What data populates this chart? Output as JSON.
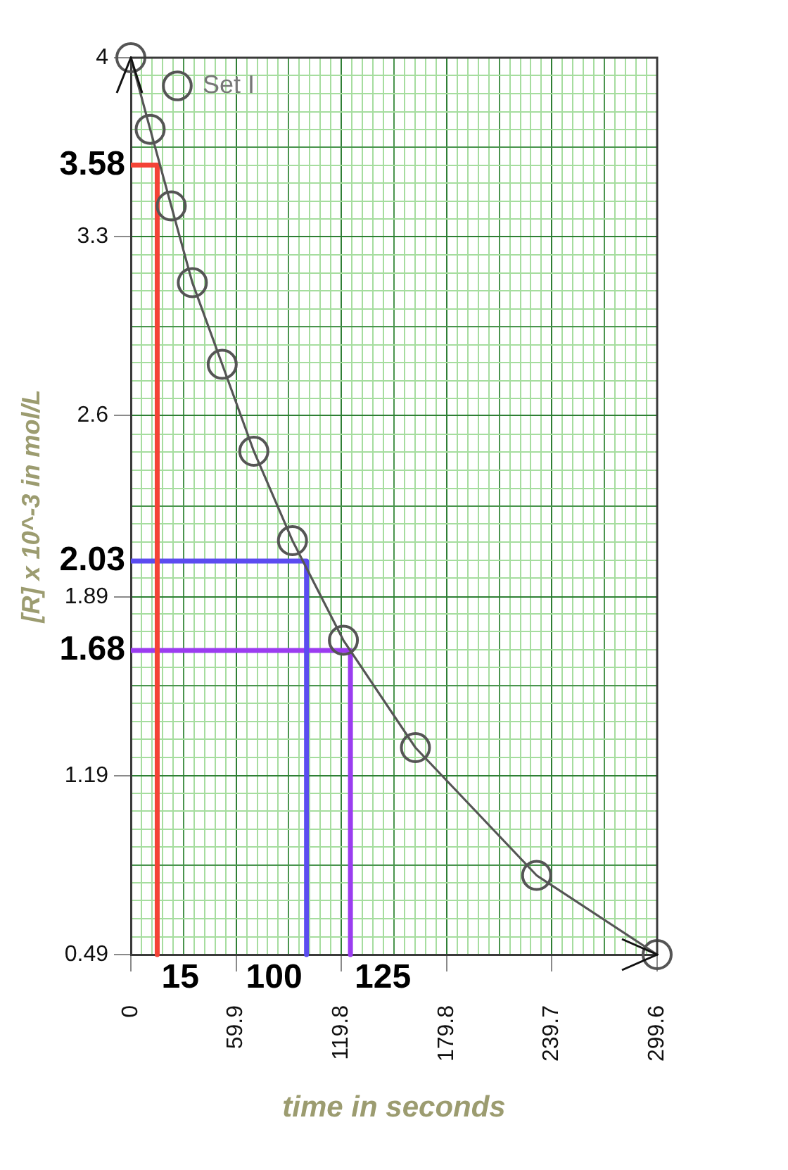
{
  "chart_data": {
    "type": "line",
    "xlabel": "time in seconds",
    "ylabel": "[R] x 10^-3 in mol/L",
    "x": [
      0,
      11,
      23,
      35,
      52,
      70,
      92,
      121,
      162,
      231,
      299.6
    ],
    "series": [
      {
        "name": "Set I",
        "color": "#555555",
        "values": [
          4,
          3.72,
          3.42,
          3.12,
          2.8,
          2.46,
          2.11,
          1.72,
          1.3,
          0.8,
          0.49
        ]
      },
      {
        "type": "line",
        "marker": "none",
        "color": "#f44336",
        "x": [
          0,
          15,
          15
        ],
        "values": [
          3.58,
          3.58,
          0.49
        ]
      },
      {
        "type": "line",
        "marker": "none",
        "color": "#5b4cf0",
        "x": [
          0,
          100,
          100
        ],
        "values": [
          2.03,
          2.03,
          0.49
        ]
      },
      {
        "type": "line",
        "marker": "none",
        "color": "#9b3cf0",
        "x": [
          0,
          125,
          125
        ],
        "values": [
          1.68,
          1.68,
          0.49
        ]
      }
    ],
    "annotations": [
      {
        "text": "3.58",
        "x": 0,
        "y": 3.58
      },
      {
        "text": "15",
        "x": 15,
        "y": 0.49
      },
      {
        "text": "2.03",
        "x": 0,
        "y": 2.03
      },
      {
        "text": "100",
        "x": 100,
        "y": 0.49
      },
      {
        "text": "1.68",
        "x": 0,
        "y": 1.68
      },
      {
        "text": "125",
        "x": 125,
        "y": 0.49
      }
    ],
    "xlim": [
      0,
      299.6
    ],
    "ylim": [
      0.49,
      4
    ],
    "xticks": [
      0,
      {
        "value": 5.99,
        "label": null
      },
      {
        "value": 11.98,
        "label": null
      },
      {
        "value": 17.98,
        "label": null
      },
      {
        "value": 23.97,
        "label": null
      },
      {
        "value": 29.96,
        "label": null
      },
      {
        "value": 35.95,
        "label": null
      },
      {
        "value": 41.94,
        "label": null
      },
      {
        "value": 47.94,
        "label": null
      },
      {
        "value": 53.93,
        "label": null
      },
      59.9,
      {
        "value": 65.91,
        "label": null
      },
      {
        "value": 71.9,
        "label": null
      },
      {
        "value": 77.9,
        "label": null
      },
      {
        "value": 83.89,
        "label": null
      },
      {
        "value": 89.88,
        "label": null
      },
      {
        "value": 95.87,
        "label": null
      },
      {
        "value": 101.86,
        "label": null
      },
      {
        "value": 107.86,
        "label": null
      },
      {
        "value": 113.85,
        "label": null
      },
      119.8,
      {
        "value": 125.83,
        "label": null
      },
      {
        "value": 131.82,
        "label": null
      },
      {
        "value": 137.82,
        "label": null
      },
      {
        "value": 143.81,
        "label": null
      },
      {
        "value": 149.8,
        "label": null
      },
      {
        "value": 155.79,
        "label": null
      },
      {
        "value": 161.78,
        "label": null
      },
      {
        "value": 167.78,
        "label": null
      },
      {
        "value": 173.77,
        "label": null
      },
      179.8,
      {
        "value": 185.75,
        "label": null
      },
      {
        "value": 191.74,
        "label": null
      },
      {
        "value": 197.74,
        "label": null
      },
      {
        "value": 203.73,
        "label": null
      },
      {
        "value": 209.72,
        "label": null
      },
      {
        "value": 215.71,
        "label": null
      },
      {
        "value": 221.7,
        "label": null
      },
      {
        "value": 227.7,
        "label": null
      },
      {
        "value": 233.69,
        "label": null
      },
      239.7,
      {
        "value": 245.67,
        "label": null
      },
      {
        "value": 251.66,
        "label": null
      },
      {
        "value": 257.66,
        "label": null
      },
      {
        "value": 263.65,
        "label": null
      },
      {
        "value": 269.64,
        "label": null
      },
      {
        "value": 275.63,
        "label": null
      },
      {
        "value": 281.62,
        "label": null
      },
      {
        "value": 287.62,
        "label": null
      },
      {
        "value": 293.61,
        "label": null
      },
      299.6
    ],
    "yticks": [
      0.49,
      {
        "value": 0.56,
        "label": null
      },
      {
        "value": 0.63,
        "label": null
      },
      {
        "value": 0.701,
        "label": null
      },
      {
        "value": 0.771,
        "label": null
      },
      {
        "value": 0.841,
        "label": null
      },
      {
        "value": 0.911,
        "label": null
      },
      {
        "value": 0.981,
        "label": null
      },
      {
        "value": 1.052,
        "label": null
      },
      {
        "value": 1.122,
        "label": null
      },
      1.19,
      {
        "value": 1.262,
        "label": null
      },
      {
        "value": 1.332,
        "label": null
      },
      {
        "value": 1.403,
        "label": null
      },
      {
        "value": 1.473,
        "label": null
      },
      {
        "value": 1.543,
        "label": null
      },
      {
        "value": 1.613,
        "label": null
      },
      {
        "value": 1.683,
        "label": null
      },
      {
        "value": 1.754,
        "label": null
      },
      {
        "value": 1.824,
        "label": null
      },
      1.89,
      {
        "value": 1.964,
        "label": null
      },
      {
        "value": 2.034,
        "label": null
      },
      {
        "value": 2.105,
        "label": null
      },
      {
        "value": 2.175,
        "label": null
      },
      {
        "value": 2.245,
        "label": null
      },
      {
        "value": 2.315,
        "label": null
      },
      {
        "value": 2.385,
        "label": null
      },
      {
        "value": 2.456,
        "label": null
      },
      {
        "value": 2.526,
        "label": null
      },
      2.6,
      {
        "value": 2.666,
        "label": null
      },
      {
        "value": 2.736,
        "label": null
      },
      {
        "value": 2.807,
        "label": null
      },
      {
        "value": 2.877,
        "label": null
      },
      {
        "value": 2.947,
        "label": null
      },
      {
        "value": 3.017,
        "label": null
      },
      {
        "value": 3.087,
        "label": null
      },
      {
        "value": 3.158,
        "label": null
      },
      {
        "value": 3.228,
        "label": null
      },
      3.3,
      {
        "value": 3.368,
        "label": null
      },
      {
        "value": 3.438,
        "label": null
      },
      {
        "value": 3.509,
        "label": null
      },
      {
        "value": 3.579,
        "label": null
      },
      {
        "value": 3.649,
        "label": null
      },
      {
        "value": 3.719,
        "label": null
      },
      {
        "value": 3.789,
        "label": null
      },
      {
        "value": 3.86,
        "label": null
      },
      {
        "value": 3.93,
        "label": null
      },
      4
    ],
    "grid": true,
    "legend": "top left",
    "marker": "circle"
  }
}
